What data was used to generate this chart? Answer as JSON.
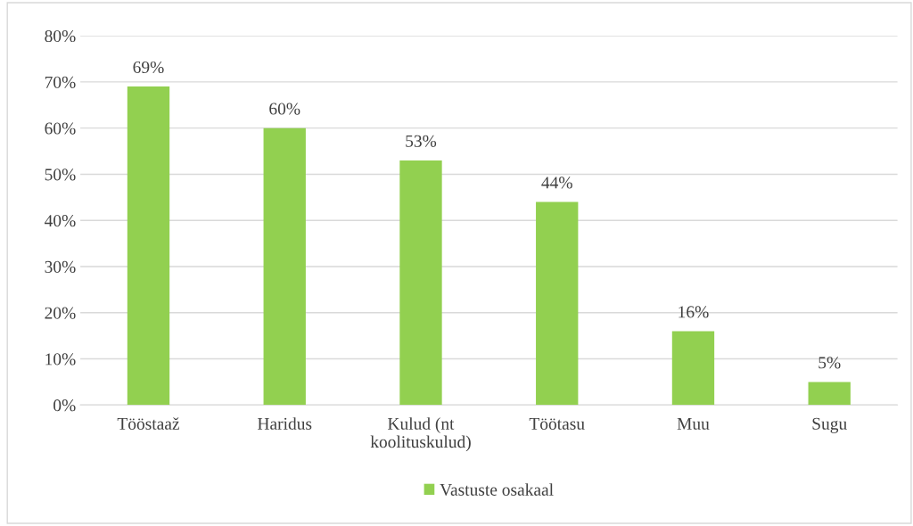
{
  "chart_data": {
    "type": "bar",
    "categories": [
      "Tööstaaž",
      "Haridus",
      "Kulud (nt\nkoolituskulud)",
      "Töötasu",
      "Muu",
      "Sugu"
    ],
    "series": [
      {
        "name": "Vastuste osakaal",
        "color": "#92d050",
        "values": [
          69,
          60,
          53,
          44,
          16,
          5
        ],
        "value_labels": [
          "69%",
          "60%",
          "53%",
          "44%",
          "16%",
          "5%"
        ]
      }
    ],
    "ylim": [
      0,
      80
    ],
    "yticks": [
      {
        "value": 0,
        "label": "0%"
      },
      {
        "value": 10,
        "label": "10%"
      },
      {
        "value": 20,
        "label": "20%"
      },
      {
        "value": 30,
        "label": "30%"
      },
      {
        "value": 40,
        "label": "40%"
      },
      {
        "value": 50,
        "label": "50%"
      },
      {
        "value": 60,
        "label": "60%"
      },
      {
        "value": 70,
        "label": "70%"
      },
      {
        "value": 80,
        "label": "80%"
      }
    ],
    "grid": "y",
    "legend": "bottom"
  }
}
